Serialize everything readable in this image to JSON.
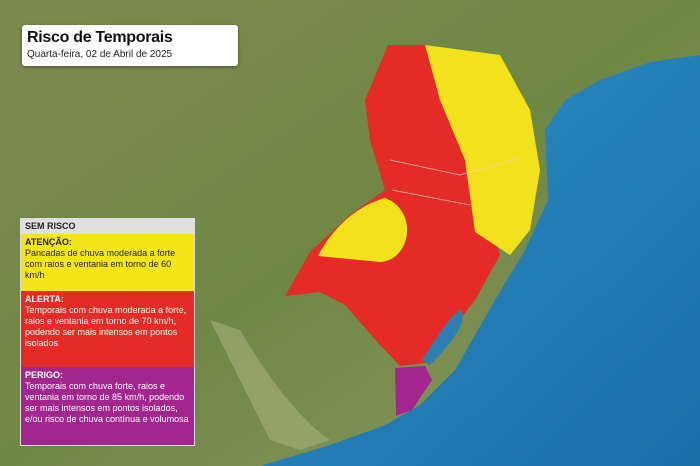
{
  "header": {
    "title": "Risco de Temporais",
    "subtitle": "Quarta-feira, 02 de Abril de 2025"
  },
  "legend": [
    {
      "label": "SEM RISCO"
    },
    {
      "label": "ATENÇÃO:",
      "text": "Pancadas de chuva moderada a forte com raios e ventania em torno de 60 km/h"
    },
    {
      "label": "ALERTA:",
      "text": "Temporais com chuva moderada a forte, raios e ventania em torno de 70 km/h, podendo ser mais intensos em pontos isolados"
    },
    {
      "label": "PERIGO:",
      "text": "Temporais com chuva forte, raios e ventania em torno de 85 km/h, podendo ser mais intensos em pontos isolados, e/ou risco de chuva contínua e volumosa"
    }
  ]
}
